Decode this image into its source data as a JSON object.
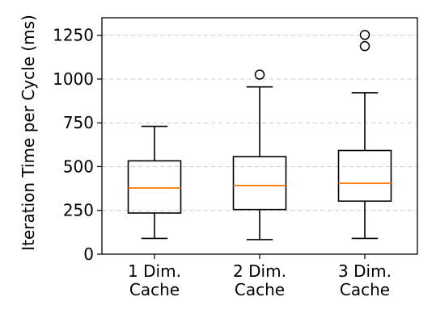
{
  "chart_data": {
    "type": "boxplot",
    "title": "",
    "xlabel": "",
    "ylabel": "Iteration Time per Cycle (ms)",
    "ylim": [
      0,
      1350
    ],
    "yticks": [
      0,
      250,
      500,
      750,
      1000,
      1250
    ],
    "ytick_labels": [
      "0",
      "250",
      "500",
      "750",
      "1000",
      "1250"
    ],
    "grid": "y-dashed",
    "categories": [
      [
        "1 Dim.",
        "Cache"
      ],
      [
        "2 Dim.",
        "Cache"
      ],
      [
        "3 Dim.",
        "Cache"
      ]
    ],
    "boxes": [
      {
        "whisker_low": 90,
        "q1": 235,
        "median": 378,
        "q3": 533,
        "whisker_high": 730,
        "outliers": []
      },
      {
        "whisker_low": 83,
        "q1": 255,
        "median": 392,
        "q3": 557,
        "whisker_high": 955,
        "outliers": [
          1025
        ]
      },
      {
        "whisker_low": 90,
        "q1": 303,
        "median": 405,
        "q3": 592,
        "whisker_high": 922,
        "outliers": [
          1188,
          1252
        ]
      }
    ],
    "colors": {
      "box": "#000000",
      "median": "#ff7f0e",
      "grid": "#cccccc",
      "outlier": "#000000"
    }
  }
}
